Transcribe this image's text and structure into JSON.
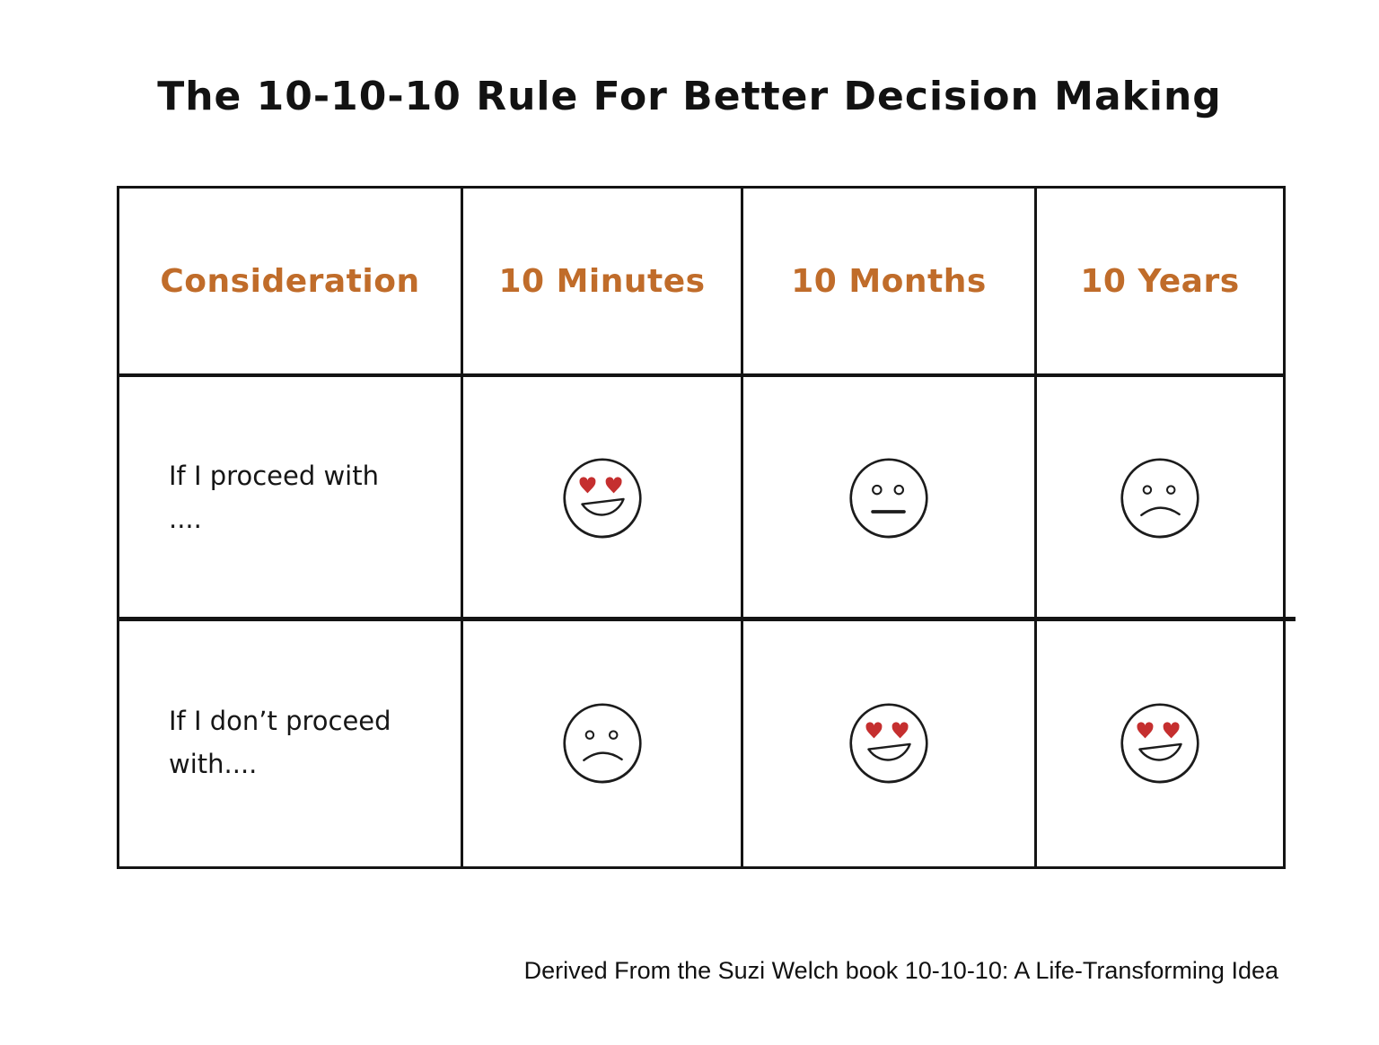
{
  "title": "The 10-10-10 Rule For Better Decision Making",
  "footer": "Derived From the Suzi Welch book 10-10-10: A Life-Transforming Idea",
  "colors": {
    "header_text": "#c06c2a",
    "heart": "#c52f2f",
    "ink": "#1c1c1c"
  },
  "table": {
    "headers": [
      "Consideration",
      "10 Minutes",
      "10 Months",
      "10 Years"
    ],
    "rows": [
      {
        "label": "If I proceed with\n....",
        "faces": [
          "heart-eyes",
          "neutral",
          "sad"
        ]
      },
      {
        "label": "If I don’t proceed with....",
        "faces": [
          "sad",
          "heart-eyes",
          "heart-eyes"
        ]
      }
    ]
  }
}
